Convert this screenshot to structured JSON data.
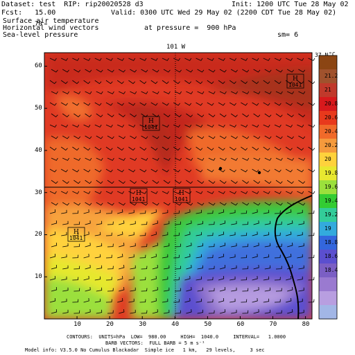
{
  "header": {
    "dataset_line": "Dataset: test  RIP: rip20020528 d3",
    "init_line": "Init: 1200 UTC Tue 28 May 02",
    "fcst_line": "Fcst:   15.00",
    "valid_line": "Valid: 0300 UTC Wed 29 May 02 (2200 CDT Tue 28 May 02)",
    "field1": "Surface air temperature",
    "field2": "Horizontal wind vectors",
    "pressure_line": "at pressure =  900 hPa",
    "field3": "Sea-level pressure",
    "sm_line": "sm= 6"
  },
  "map": {
    "top_label": "101 W",
    "right_top_label": "37 N",
    "xticks": [
      "10",
      "20",
      "30",
      "40",
      "50",
      "60",
      "70",
      "80"
    ],
    "yticks": [
      "10",
      "20",
      "30",
      "40",
      "50",
      "60",
      "70"
    ],
    "highs": [
      {
        "letter": "H",
        "value": "1041"
      },
      {
        "letter": "H",
        "value": "1041"
      },
      {
        "letter": "H",
        "value": "1041"
      },
      {
        "letter": "H",
        "value": "1041"
      },
      {
        "letter": "H",
        "value": "1041"
      }
    ]
  },
  "colorbar": {
    "unit": "°C",
    "labels": [
      "21.2",
      "21",
      "20.8",
      "20.6",
      "20.4",
      "20.2",
      "20",
      "19.8",
      "19.6",
      "19.4",
      "19.2",
      "19",
      "18.8",
      "18.6",
      "18.4"
    ],
    "colors": [
      "#8b4513",
      "#a0522d",
      "#c0392b",
      "#d7191c",
      "#e8391c",
      "#f06a2a",
      "#f59a3c",
      "#ffd23c",
      "#e8e830",
      "#9be03c",
      "#33cc33",
      "#33cc99",
      "#33aadd",
      "#3366dd",
      "#5b4fcf",
      "#7b5fc4",
      "#9a7ad0",
      "#b89ee0",
      "#a2b6e6"
    ]
  },
  "footer": {
    "line1": "CONTOURS:  UNITS=hPa  LOW=  980.00     HIGH=  1040.0     INTERVAL=   1.0000",
    "line2": "BARB VECTORS:  FULL BARB = 5 m s⁻¹",
    "line3": "Model info: V3.5.0 No Cumulus Blackadar  Simple ice   1 km,   29 levels,     3 sec"
  }
}
